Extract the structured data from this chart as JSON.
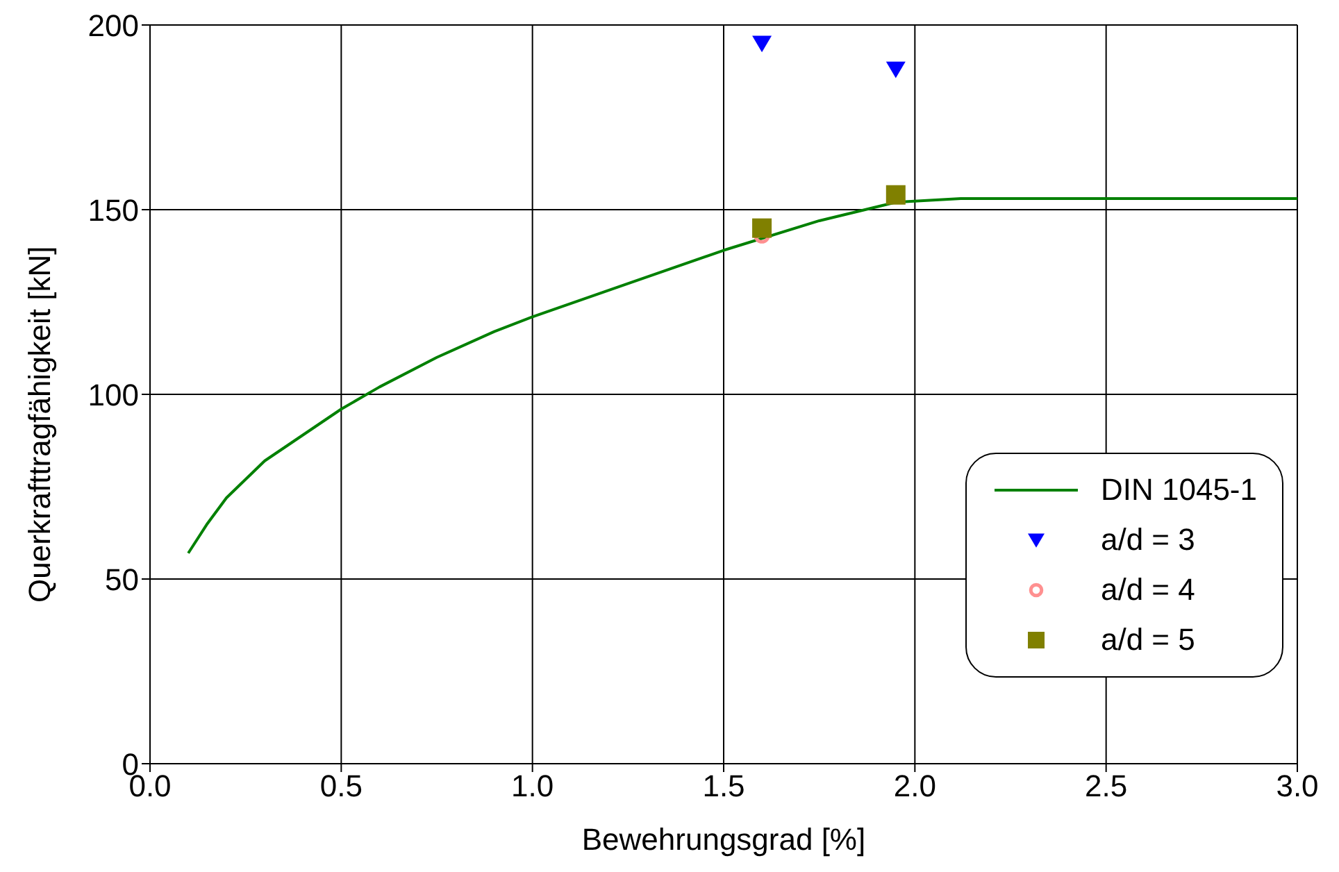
{
  "chart_data": {
    "type": "line",
    "xlabel": "Bewehrungsgrad [%]",
    "ylabel": "Querkrafttragfähigkeit [kN]",
    "xlim": [
      0,
      3
    ],
    "xticks": [
      {
        "value": 0,
        "label": "0.0"
      },
      {
        "value": 0.5,
        "label": "0.5"
      },
      {
        "value": 1,
        "label": "1.0"
      },
      {
        "value": 1.5,
        "label": "1.5"
      },
      {
        "value": 2,
        "label": "2.0"
      },
      {
        "value": 2.5,
        "label": "2.5"
      },
      {
        "value": 3,
        "label": "3.0"
      }
    ],
    "ylim": [
      0,
      200
    ],
    "yticks": [
      0,
      50,
      100,
      150,
      200
    ],
    "grid": true,
    "legend": "bottom right",
    "series": [
      {
        "name": "DIN 1045-1",
        "color": "#008000",
        "marker": "none",
        "line_style": "solid",
        "x": [
          0.1,
          0.15,
          0.2,
          0.3,
          0.4,
          0.5,
          0.6,
          0.75,
          0.9,
          1.0,
          1.25,
          1.5,
          1.75,
          1.95,
          2.12,
          3.0
        ],
        "values": [
          57,
          65,
          72,
          82,
          89,
          96,
          102,
          110,
          117,
          121,
          130,
          139,
          147,
          152,
          153,
          153
        ]
      },
      {
        "name": "a/d = 3",
        "type": "scatter",
        "color": "#0000ff",
        "marker": "triangle",
        "x": [
          1.6,
          1.95
        ],
        "values": [
          195,
          188
        ]
      },
      {
        "name": "a/d = 4",
        "type": "scatter",
        "color": "#ff9090",
        "marker": "circle",
        "x": [
          1.6
        ],
        "values": [
          143
        ]
      },
      {
        "name": "a/d = 5",
        "type": "scatter",
        "color": "#808000",
        "marker": "square",
        "x": [
          1.6,
          1.95
        ],
        "values": [
          145,
          154
        ]
      }
    ]
  }
}
